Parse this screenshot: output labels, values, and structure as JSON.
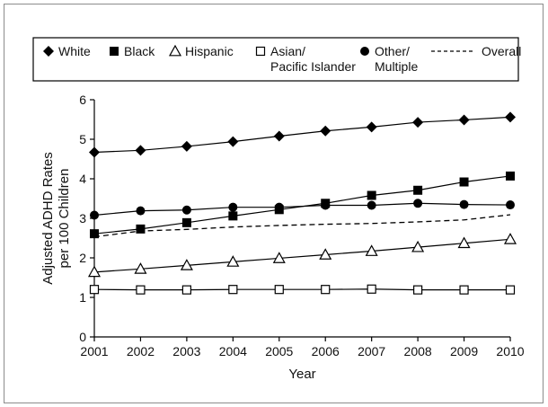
{
  "chart_data": {
    "type": "line",
    "title": "",
    "xlabel": "Year",
    "ylabel": "Adjusted ADHD Rates per 100 Children",
    "ylabel_lines": [
      "Adjusted ADHD Rates",
      "per 100 Children"
    ],
    "x": [
      2001,
      2002,
      2003,
      2004,
      2005,
      2006,
      2007,
      2008,
      2009,
      2010
    ],
    "x_tick_labels": [
      "2001",
      "2002",
      "2003",
      "2004",
      "2005",
      "2006",
      "2007",
      "2008",
      "2009",
      "2010"
    ],
    "ylim": [
      0,
      6
    ],
    "y_ticks": [
      0,
      1,
      2,
      3,
      4,
      5,
      6
    ],
    "y_tick_labels": [
      "0",
      "1",
      "2",
      "3",
      "4",
      "5",
      "6"
    ],
    "grid": false,
    "legend_position": "top",
    "series": [
      {
        "key": "white",
        "name": "White",
        "name_lines": [
          "White"
        ],
        "marker": "diamond",
        "dashed": false,
        "values": [
          4.67,
          4.72,
          4.82,
          4.94,
          5.08,
          5.21,
          5.31,
          5.43,
          5.49,
          5.56
        ]
      },
      {
        "key": "black",
        "name": "Black",
        "name_lines": [
          "Black"
        ],
        "marker": "square-filled",
        "dashed": false,
        "values": [
          2.61,
          2.73,
          2.89,
          3.06,
          3.22,
          3.38,
          3.58,
          3.71,
          3.92,
          4.07
        ]
      },
      {
        "key": "hispanic",
        "name": "Hispanic",
        "name_lines": [
          "Hispanic"
        ],
        "marker": "triangle-open",
        "dashed": false,
        "values": [
          1.64,
          1.72,
          1.81,
          1.9,
          1.99,
          2.08,
          2.17,
          2.27,
          2.37,
          2.47
        ]
      },
      {
        "key": "asian",
        "name": "Asian/ Pacific Islander",
        "name_lines": [
          "Asian/",
          "Pacific Islander"
        ],
        "marker": "square-open",
        "dashed": false,
        "values": [
          1.2,
          1.19,
          1.19,
          1.2,
          1.2,
          1.2,
          1.21,
          1.19,
          1.19,
          1.19
        ]
      },
      {
        "key": "other",
        "name": "Other/ Multiple",
        "name_lines": [
          "Other/",
          "Multiple"
        ],
        "marker": "circle-filled",
        "dashed": false,
        "values": [
          3.08,
          3.19,
          3.21,
          3.28,
          3.28,
          3.33,
          3.33,
          3.38,
          3.35,
          3.34
        ]
      },
      {
        "key": "overall",
        "name": "Overall",
        "name_lines": [
          "Overall"
        ],
        "marker": "none",
        "dashed": true,
        "values": [
          2.53,
          2.68,
          2.72,
          2.78,
          2.82,
          2.85,
          2.87,
          2.91,
          2.96,
          3.09
        ]
      }
    ]
  }
}
